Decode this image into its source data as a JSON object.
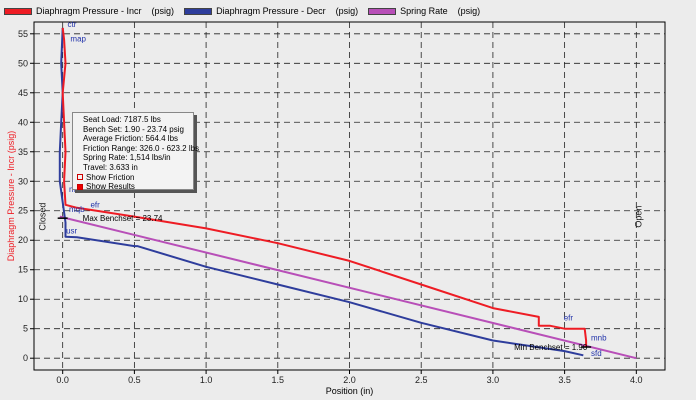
{
  "legend": [
    {
      "label": "Diaphragm Pressure - Incr",
      "units": "(psig)",
      "color": "#ee1c24"
    },
    {
      "label": "Diaphragm Pressure - Decr",
      "units": "(psig)",
      "color": "#2e3d9c"
    },
    {
      "label": "Spring Rate",
      "units": "(psig)",
      "color": "#b84fb8"
    }
  ],
  "info": {
    "seat_load": "Seat Load: 7187.5 lbs",
    "bench_set": "Bench Set: 1.90 - 23.74 psig",
    "avg_friction": "Average Friction: 564.4 lbs",
    "friction_range": "Friction Range: 326.0 - 623.2 lbs",
    "spring_rate": "Spring Rate: 1,514 lbs/in",
    "travel": "Travel: 3.633 in",
    "show_friction": "Show Friction",
    "show_results": "Show Results",
    "show_friction_checked": false,
    "show_results_checked": true
  },
  "chart_data": {
    "type": "line",
    "xlabel": "Position  (in)",
    "ylabel": "Diaphragm Pressure - Incr  (psig)",
    "xlim": [
      -0.2,
      4.2
    ],
    "ylim": [
      -2,
      57
    ],
    "x_ticks": [
      "0.0",
      "0.5",
      "1.0",
      "1.5",
      "2.0",
      "2.5",
      "3.0",
      "3.5",
      "4.0"
    ],
    "y_ticks": [
      "0",
      "5",
      "10",
      "15",
      "20",
      "25",
      "30",
      "35",
      "40",
      "45",
      "50",
      "55"
    ],
    "grid": true,
    "region_labels": {
      "left": "Closed",
      "right": "Open"
    },
    "series": [
      {
        "name": "Diaphragm Pressure - Incr",
        "color": "#ee1c24",
        "x": [
          3.65,
          3.65,
          3.64,
          3.5,
          3.4,
          3.32,
          3.32,
          3.0,
          2.5,
          2.0,
          1.5,
          1.0,
          0.5,
          0.1,
          0.02,
          0.01,
          0.02,
          0.01,
          0.0,
          0.02,
          0.01,
          0.0
        ],
        "y": [
          1.9,
          3.0,
          5.0,
          5.0,
          5.5,
          5.5,
          7.0,
          8.5,
          12.5,
          16.5,
          19.5,
          22.0,
          24.0,
          25.5,
          26.0,
          30.0,
          35.0,
          40.0,
          45.0,
          50.0,
          54.0,
          56.0
        ]
      },
      {
        "name": "Diaphragm Pressure - Decr",
        "color": "#2e3d9c",
        "x": [
          0.0,
          -0.01,
          0.0,
          -0.01,
          -0.02,
          -0.02,
          0.02,
          0.02,
          0.1,
          0.5,
          0.52,
          1.0,
          1.5,
          2.0,
          2.5,
          3.0,
          3.5,
          3.63
        ],
        "y": [
          56.0,
          50.0,
          45.0,
          40.0,
          35.0,
          30.0,
          23.0,
          20.6,
          20.5,
          19.0,
          19.0,
          15.5,
          12.5,
          9.5,
          6.0,
          3.0,
          1.2,
          0.5
        ]
      },
      {
        "name": "Spring Rate",
        "color": "#b84fb8",
        "x": [
          -0.02,
          4.0
        ],
        "y": [
          24.0,
          0.0
        ]
      }
    ],
    "annotations": [
      {
        "text": "ctr",
        "x": 0.02,
        "y": 56.0
      },
      {
        "text": "map",
        "x": 0.04,
        "y": 53.5
      },
      {
        "text": "msc",
        "x": 0.03,
        "y": 28.0
      },
      {
        "text": "mqb",
        "x": 0.03,
        "y": 24.6
      },
      {
        "text": "efr",
        "x": 0.18,
        "y": 25.4
      },
      {
        "text": "usr",
        "x": 0.01,
        "y": 21.0
      },
      {
        "text": "efr",
        "x": 3.48,
        "y": 6.2
      },
      {
        "text": "mnb",
        "x": 3.67,
        "y": 2.8
      },
      {
        "text": "sfd",
        "x": 3.67,
        "y": 0.2
      }
    ],
    "bench_markers": [
      {
        "text": "Max Benchset = 23.74",
        "x": 0.0,
        "y": 23.74
      },
      {
        "text": "Min Benchset = 1.90",
        "x": 3.65,
        "y": 1.9
      }
    ]
  }
}
